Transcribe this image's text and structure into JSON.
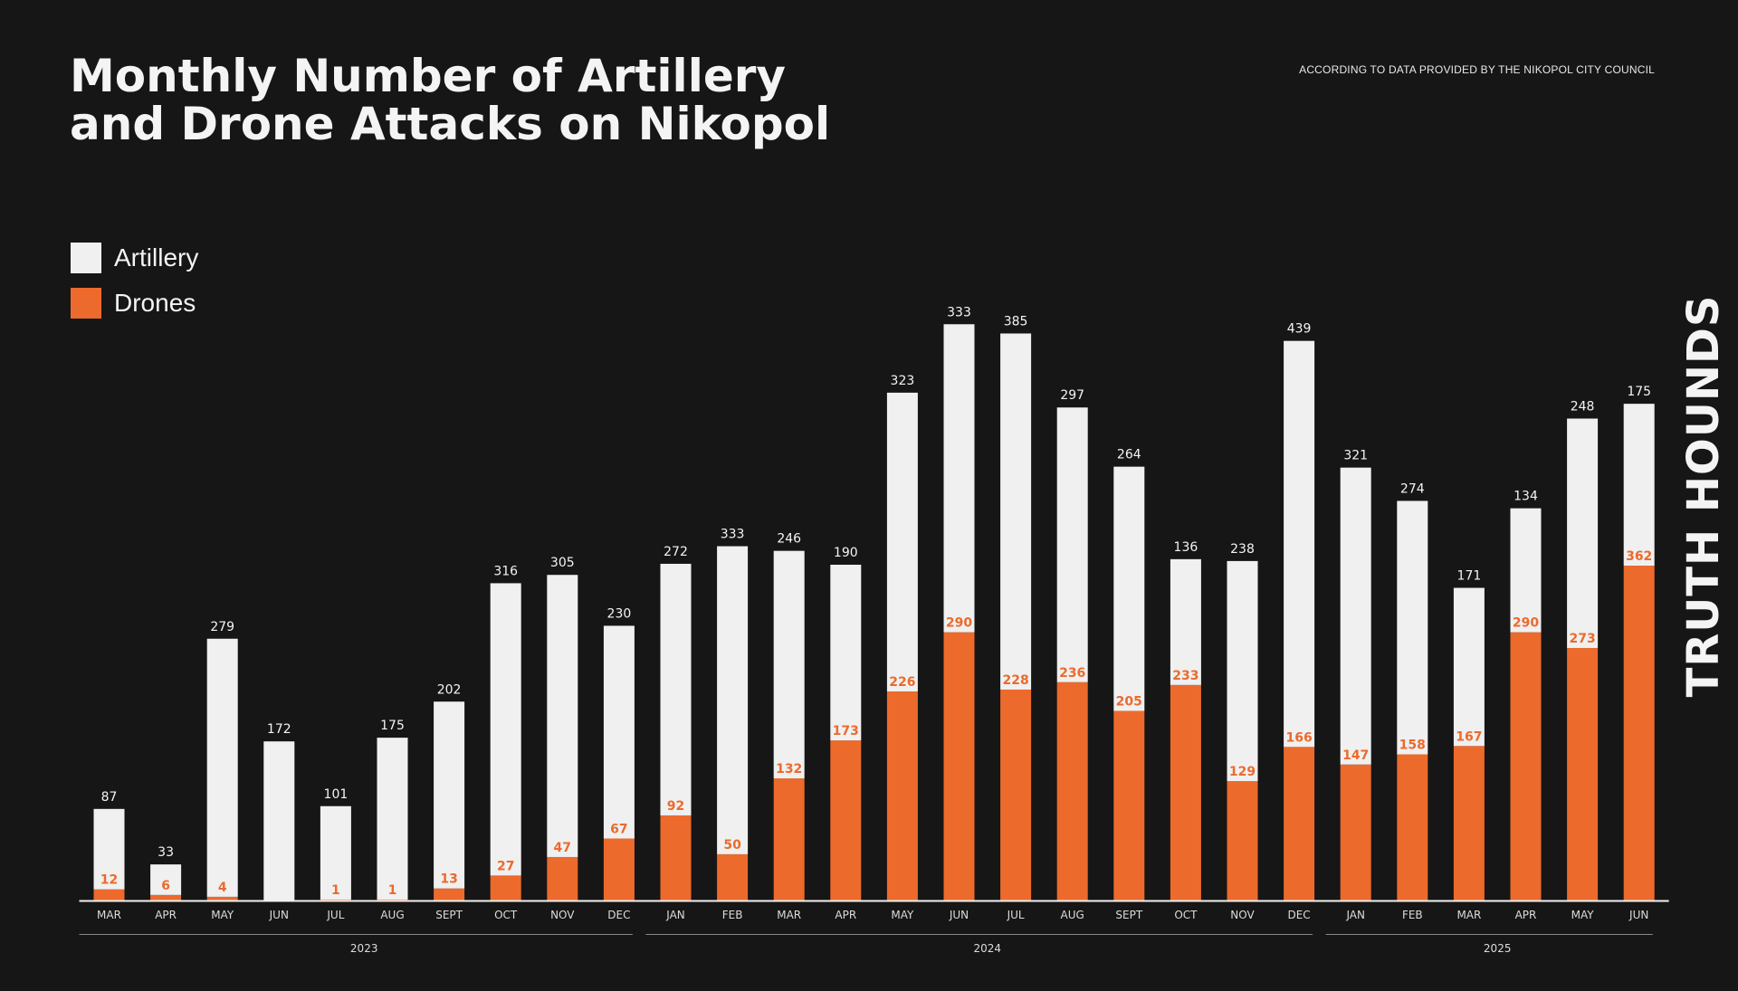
{
  "header": {
    "title_line1": "Monthly Number of Artillery",
    "title_line2": "and Drone Attacks on Nikopol",
    "source_note": "ACCORDING TO DATA PROVIDED BY THE NIKOPOL CITY COUNCIL"
  },
  "brand": {
    "name": "TRUTH HOUNDS"
  },
  "colors": {
    "background": "#161616",
    "artillery": "#f0f0f0",
    "drones": "#ec6a2c",
    "text": "#f4f4f4"
  },
  "legend": {
    "items": [
      {
        "label": "Artillery",
        "color": "#f0f0f0"
      },
      {
        "label": "Drones",
        "color": "#ec6a2c"
      }
    ]
  },
  "chart_data": {
    "type": "bar",
    "stacked": true,
    "title": "Monthly Number of Artillery and Drone Attacks on Nikopol",
    "categories": [
      "MAR",
      "APR",
      "MAY",
      "JUN",
      "JUL",
      "AUG",
      "SEPT",
      "OCT",
      "NOV",
      "DEC",
      "JAN",
      "FEB",
      "MAR",
      "APR",
      "MAY",
      "JUN",
      "JUL",
      "AUG",
      "SEPT",
      "OCT",
      "NOV",
      "DEC",
      "JAN",
      "FEB",
      "MAR",
      "APR",
      "MAY",
      "JUN"
    ],
    "year_groups": [
      {
        "label": "2023",
        "start": 0,
        "end": 9
      },
      {
        "label": "2024",
        "start": 10,
        "end": 21
      },
      {
        "label": "2025",
        "start": 22,
        "end": 27
      }
    ],
    "series": [
      {
        "name": "Drones",
        "color": "#ec6a2c",
        "values": [
          12,
          6,
          4,
          null,
          1,
          1,
          13,
          27,
          47,
          67,
          92,
          50,
          132,
          173,
          226,
          290,
          228,
          236,
          205,
          233,
          129,
          166,
          147,
          158,
          167,
          290,
          273,
          362
        ]
      },
      {
        "name": "Artillery",
        "color": "#f0f0f0",
        "values": [
          87,
          33,
          279,
          172,
          101,
          175,
          202,
          316,
          305,
          230,
          272,
          333,
          246,
          190,
          323,
          333,
          385,
          297,
          264,
          136,
          238,
          439,
          321,
          274,
          171,
          134,
          248,
          175
        ]
      }
    ],
    "xlabel": "",
    "ylabel": "",
    "ylim": [
      0,
      680
    ],
    "grid": false,
    "legend_position": "top-left"
  }
}
